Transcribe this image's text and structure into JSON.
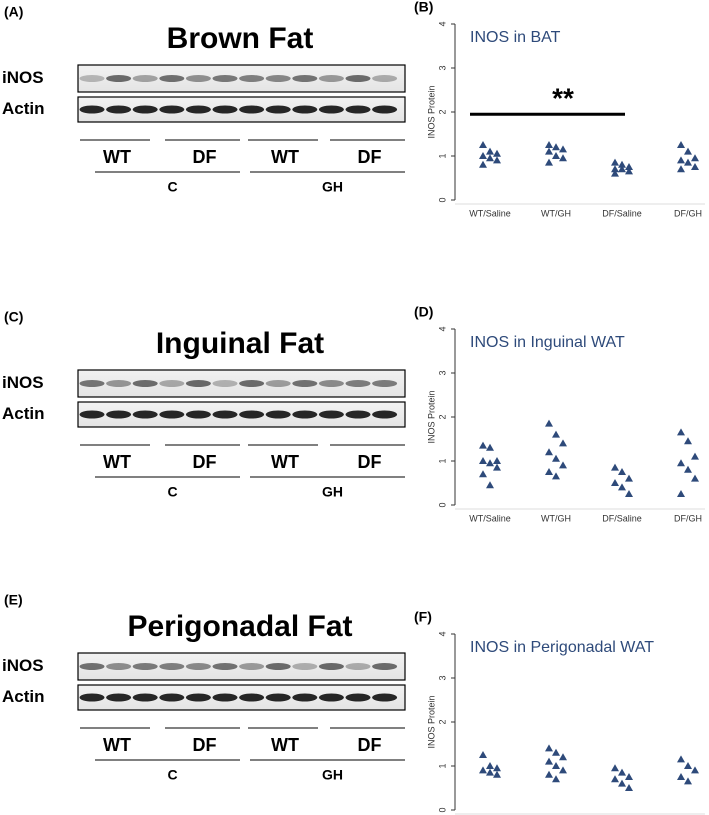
{
  "blots": [
    {
      "label": "(A)",
      "title": "Brown Fat",
      "rows": [
        "iNOS",
        "Actin"
      ],
      "groups": [
        "WT",
        "DF",
        "WT",
        "DF"
      ],
      "treatments": [
        "C",
        "GH"
      ]
    },
    {
      "label": "(C)",
      "title": "Inguinal Fat",
      "rows": [
        "iNOS",
        "Actin"
      ],
      "groups": [
        "WT",
        "DF",
        "WT",
        "DF"
      ],
      "treatments": [
        "C",
        "GH"
      ]
    },
    {
      "label": "(E)",
      "title": "Perigonadal Fat",
      "rows": [
        "iNOS",
        "Actin"
      ],
      "groups": [
        "WT",
        "DF",
        "WT",
        "DF"
      ],
      "treatments": [
        "C",
        "GH"
      ]
    }
  ],
  "chart_data": [
    {
      "type": "strip",
      "panel": "(B)",
      "title": "INOS in BAT",
      "ylabel": "INOS Protein",
      "color": "#2e4a7a",
      "categories": [
        "WT/Saline",
        "WT/GH",
        "DF/Saline",
        "DF/GH"
      ],
      "values": [
        [
          1.25,
          1.1,
          1.05,
          1.0,
          0.95,
          0.9,
          0.8
        ],
        [
          1.25,
          1.2,
          1.15,
          1.1,
          1.0,
          0.95,
          0.85
        ],
        [
          0.85,
          0.8,
          0.75,
          0.7,
          0.7,
          0.65,
          0.6
        ],
        [
          1.25,
          1.1,
          0.95,
          0.9,
          0.85,
          0.75,
          0.7
        ]
      ],
      "ylim": [
        0,
        4
      ],
      "yticks": [
        0,
        1,
        2,
        3,
        4
      ],
      "significance": {
        "label": "**",
        "y": 1.95
      }
    },
    {
      "type": "strip",
      "panel": "(D)",
      "title": "INOS in Inguinal WAT",
      "ylabel": "INOS Protein",
      "color": "#2e4a7a",
      "categories": [
        "WT/Saline",
        "WT/GH",
        "DF/Saline",
        "DF/GH"
      ],
      "values": [
        [
          1.35,
          1.3,
          1.0,
          1.0,
          0.95,
          0.85,
          0.7,
          0.45
        ],
        [
          1.85,
          1.6,
          1.4,
          1.2,
          1.05,
          0.9,
          0.75,
          0.65
        ],
        [
          0.85,
          0.75,
          0.6,
          0.5,
          0.4,
          0.25
        ],
        [
          1.65,
          1.45,
          1.1,
          0.95,
          0.8,
          0.6,
          0.25
        ]
      ],
      "ylim": [
        0,
        4
      ],
      "yticks": [
        0,
        1,
        2,
        3,
        4
      ]
    },
    {
      "type": "strip",
      "panel": "(F)",
      "title": "INOS in Perigonadal WAT",
      "ylabel": "INOS Protein",
      "color": "#2e4a7a",
      "categories": [
        "WT/Saline",
        "WT/GH",
        "DF/Saline",
        "DF/GH"
      ],
      "values": [
        [
          1.25,
          1.0,
          0.95,
          0.9,
          0.85,
          0.8
        ],
        [
          1.4,
          1.3,
          1.2,
          1.1,
          1.0,
          0.9,
          0.8,
          0.7
        ],
        [
          0.95,
          0.85,
          0.75,
          0.7,
          0.6,
          0.5
        ],
        [
          1.15,
          1.0,
          0.9,
          0.75,
          0.65
        ]
      ],
      "ylim": [
        0,
        4
      ],
      "yticks": [
        0,
        1,
        2,
        3,
        4
      ]
    }
  ]
}
